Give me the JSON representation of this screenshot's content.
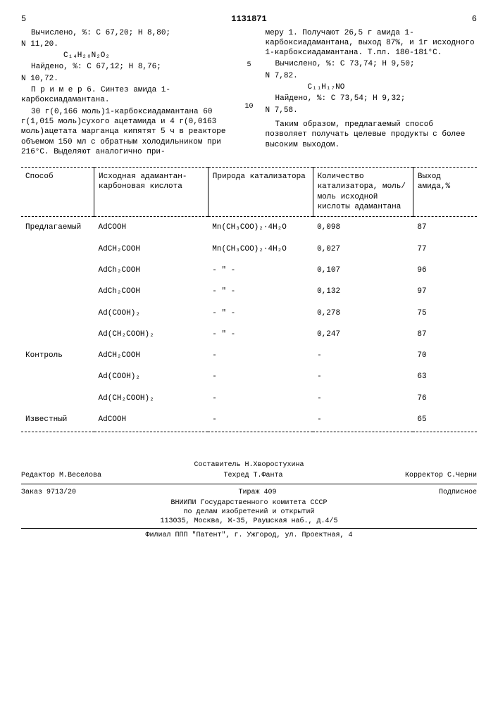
{
  "header": {
    "left_page": "5",
    "doc_id": "1131871",
    "right_page": "6"
  },
  "left_col": {
    "l1": "Вычислено, %: С 67,20; Н 8,80;",
    "l2": "N 11,20.",
    "formula1": "C₁₄H₂₀N₂O₂",
    "l3": "Найдено, %: С 67,12; Н 8,76;",
    "l4": "N 10,72.",
    "ex_title": "П р и м е р 6. Синтез амида 1-карбоксиадамантана.",
    "p1": "30 г(0,166 моль)1-карбоксиадамантана 60 г(1,015 моль)сухого ацетамида и 4 г(0,0163 моль)ацетата марганца кипятят 5 ч в реакторе объемом 150 мл с обратным холодильником при 216°С. Выделяют аналогично при-"
  },
  "right_col": {
    "p1": "меру 1. Получают 26,5 г амида 1-карбоксиадамантана, выход 87%, и 1г исходного 1-карбоксиадамантана. Т.пл. 180-181°С.",
    "l1": "Вычислено, %: С 73,74; Н 9,50;",
    "l2": "N 7,82.",
    "formula2": "C₁₁H₁₇NO",
    "l3": "Найдено, %: С 73,54; Н 9,32;",
    "l4": "N 7,58.",
    "p2": "Таким образом, предлагаемый способ позволяет получать целевые продукты с более высоким выходом."
  },
  "side_marks": {
    "m5": "5",
    "m10": "10"
  },
  "table": {
    "headers": {
      "c1": "Способ",
      "c2": "Исходная адамантан-карбоновая кислота",
      "c3": "Природа катализатора",
      "c4": "Количество катализатора, моль/моль исходной кислоты адамантана",
      "c5": "Выход амида,%"
    },
    "rows": [
      {
        "c1": "Предлагаемый",
        "c2": "AdCOOH",
        "c3": "Mn(CH₃COO)₂·4H₂O",
        "c4": "0,098",
        "c5": "87"
      },
      {
        "c1": "",
        "c2": "AdCH₂COOH",
        "c3": "Mn(CH₃COO)₂·4H₂O",
        "c4": "0,027",
        "c5": "77"
      },
      {
        "c1": "",
        "c2": "AdCh₂COOH",
        "c3": "- \" -",
        "c4": "0,107",
        "c5": "96"
      },
      {
        "c1": "",
        "c2": "AdCh₂COOH",
        "c3": "- \" -",
        "c4": "0,132",
        "c5": "97"
      },
      {
        "c1": "",
        "c2": "Ad(COOH)₂",
        "c3": "- \" -",
        "c4": "0,278",
        "c5": "75"
      },
      {
        "c1": "",
        "c2": "Ad(CH₂COOH)₂",
        "c3": "- \" -",
        "c4": "0,247",
        "c5": "87"
      },
      {
        "c1": "Контроль",
        "c2": "AdCH₂COOH",
        "c3": "-",
        "c4": "-",
        "c5": "70"
      },
      {
        "c1": "",
        "c2": "Ad(COOH)₂",
        "c3": "-",
        "c4": "-",
        "c5": "63"
      },
      {
        "c1": "",
        "c2": "Ad(CH₂COOH)₂",
        "c3": "-",
        "c4": "-",
        "c5": "76"
      },
      {
        "c1": "Известный",
        "c2": "AdCOOH",
        "c3": "-",
        "c4": "-",
        "c5": "65"
      }
    ]
  },
  "footer": {
    "compiler": "Составитель Н.Хворостухина",
    "editor": "Редактор М.Веселова",
    "tech": "Техред Т.Фанта",
    "corrector": "Корректор С.Черни",
    "order": "Заказ 9713/20",
    "circ": "Тираж 409",
    "sub": "Подписное",
    "org1": "ВНИИПИ Государственного комитета СССР",
    "org2": "по делам изобретений и открытий",
    "addr1": "113035, Москва, Ж-35, Раушская наб., д.4/5",
    "addr2": "Филиал ППП \"Патент\", г. Ужгород, ул. Проектная, 4"
  }
}
